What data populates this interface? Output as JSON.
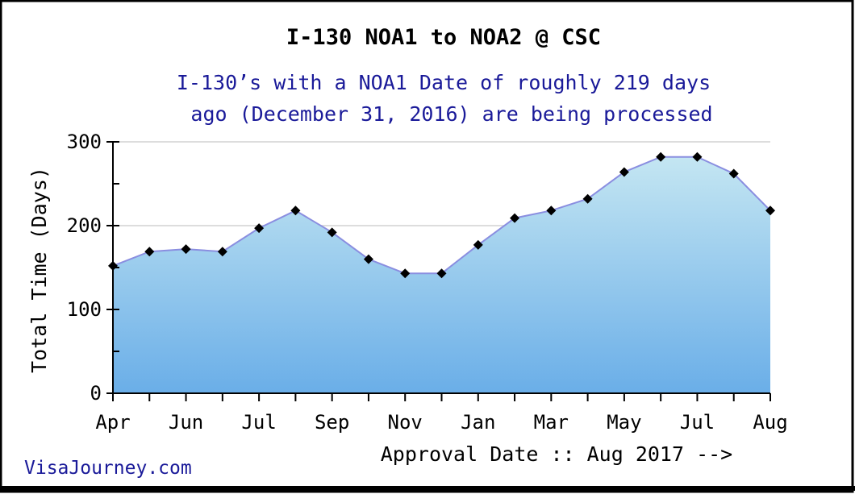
{
  "chart_data": {
    "type": "area",
    "title": "I-130 NOA1 to NOA2 @ CSC",
    "subtitle_lines": [
      "I-130’s with a NOA1 Date of roughly 219 days",
      "ago (December 31, 2016) are being processed"
    ],
    "xlabel": "Approval Date :: Aug 2017 -->",
    "ylabel": "Total Time (Days)",
    "ylim": [
      0,
      300
    ],
    "yticks": [
      "0",
      "100",
      "200",
      "300"
    ],
    "xtick_labels": [
      "Apr",
      "Jun",
      "Jul",
      "Sep",
      "Nov",
      "Jan",
      "Mar",
      "May",
      "Jul",
      "Aug"
    ],
    "x": [
      "Apr",
      "May",
      "Jun",
      "Jun",
      "Jul",
      "Aug",
      "Sep",
      "Oct",
      "Nov",
      "Dec",
      "Jan",
      "Feb",
      "Mar",
      "Apr",
      "May",
      "Jun",
      "Jul",
      "Jul",
      "Aug"
    ],
    "values": [
      152,
      169,
      172,
      169,
      197,
      218,
      192,
      160,
      143,
      143,
      177,
      209,
      218,
      232,
      264,
      282,
      282,
      262,
      218
    ],
    "grid": true,
    "colors": {
      "line": "#8a8ee0",
      "marker": "#000000",
      "fill_top": "#c4e6f2",
      "fill_bottom": "#6aaee8",
      "gridline": "#dddddd",
      "title": "#000000",
      "subtitle": "#1a1a99",
      "watermark": "#1a1a99"
    }
  },
  "watermark": "VisaJourney.com"
}
